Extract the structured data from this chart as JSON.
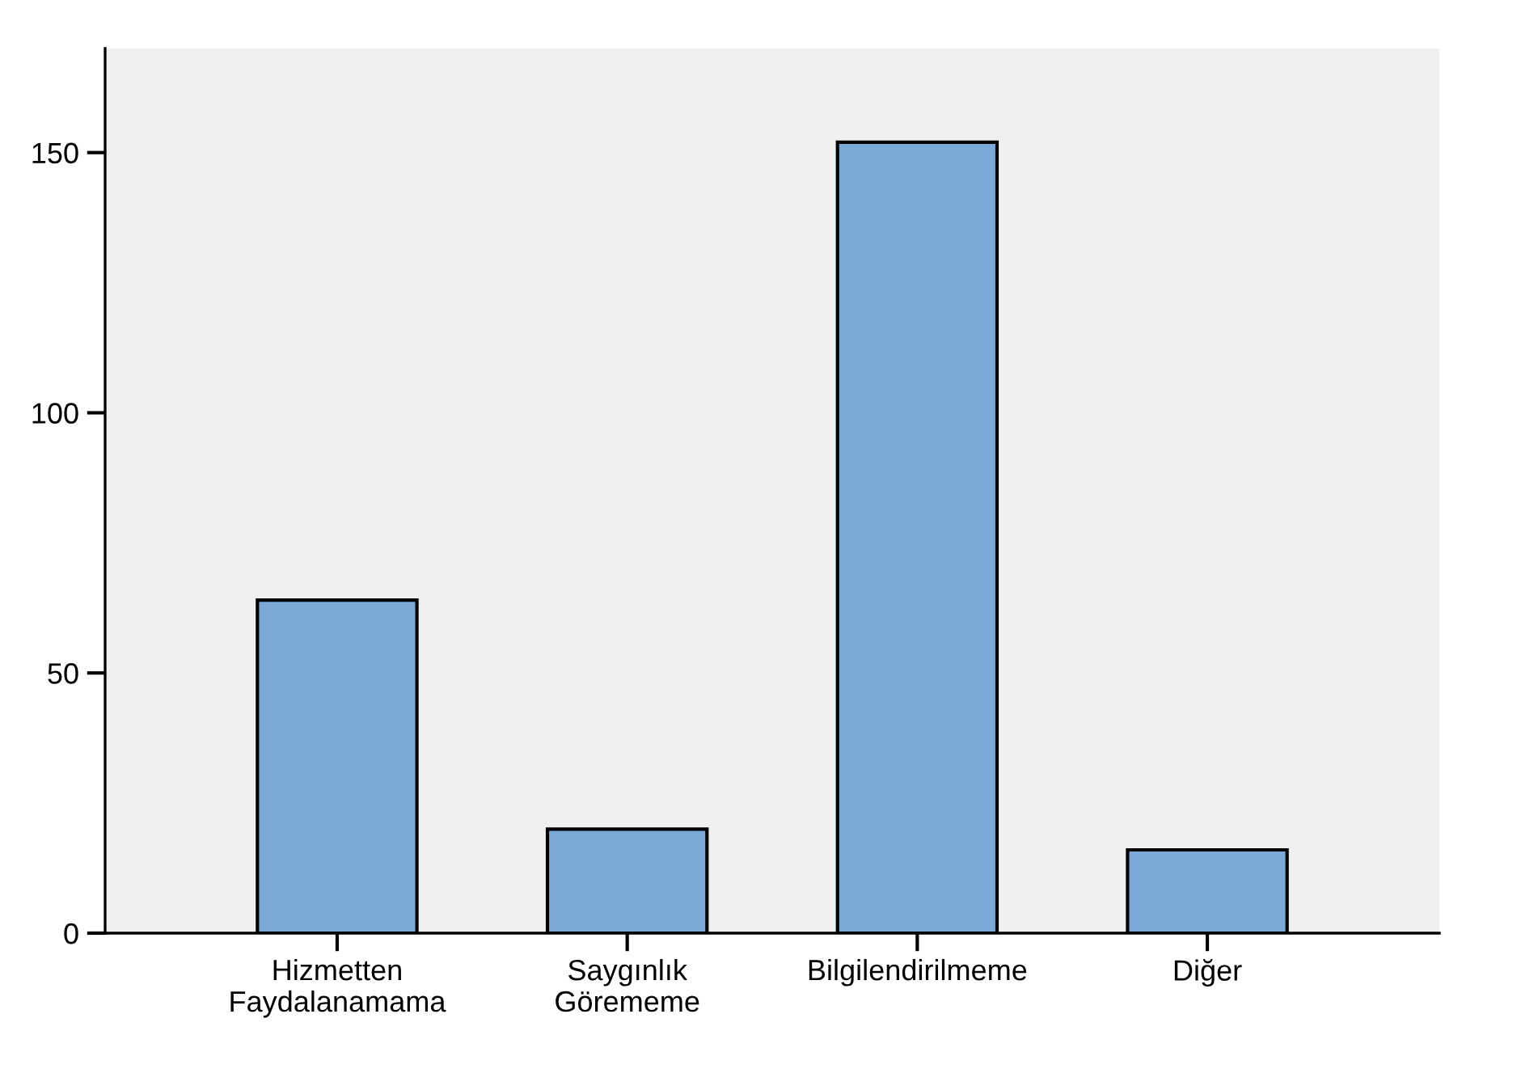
{
  "chart_data": {
    "type": "bar",
    "categories": [
      "Hizmetten\nFaydalanamama",
      "Saygınlık\nGörememe",
      "Bilgilendirilmeme",
      "Diğer"
    ],
    "values": [
      64,
      20,
      152,
      16
    ],
    "color": "#7baad8",
    "ylim": [
      0,
      170
    ],
    "yticks": [
      0,
      50,
      100,
      150
    ],
    "grid": false,
    "legend": false
  }
}
